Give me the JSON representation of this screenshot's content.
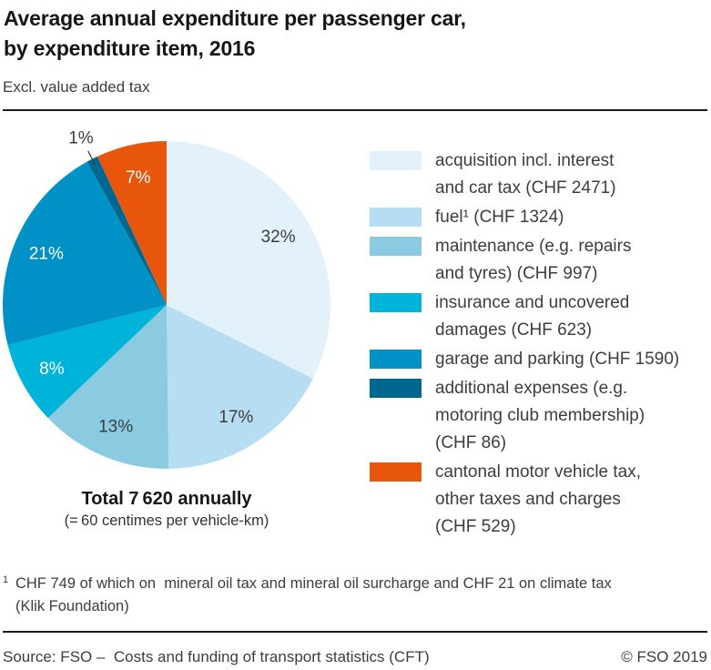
{
  "header": {
    "title_line1": "Average annual expenditure per passenger car,",
    "title_line2": "by expenditure item, 2016",
    "subtitle": "Excl. value added tax"
  },
  "chart_data": {
    "type": "pie",
    "title": "Average annual expenditure per passenger car, by expenditure item, 2016",
    "subtitle": "Excl. value added tax",
    "unit": "CHF",
    "total_chf": 7620,
    "start_angle_deg": 0,
    "direction": "clockwise",
    "legend_position": "right",
    "slices": [
      {
        "name": "acquisition incl. interest and car tax",
        "chf": 2471,
        "pct_label": "32%",
        "color": "#e3f1fb",
        "text_color": "#3d3d3d",
        "label_inside": true
      },
      {
        "name": "fuel",
        "chf": 1324,
        "pct_label": "17%",
        "color": "#b7ddf2",
        "text_color": "#3d3d3d",
        "label_inside": true
      },
      {
        "name": "maintenance (e.g. repairs and tyres)",
        "chf": 997,
        "pct_label": "13%",
        "color": "#8acbe2",
        "text_color": "#3d3d3d",
        "label_inside": true
      },
      {
        "name": "insurance and uncovered damages",
        "chf": 623,
        "pct_label": "8%",
        "color": "#00b3d9",
        "text_color": "#ffffff",
        "label_inside": true
      },
      {
        "name": "garage and parking",
        "chf": 1590,
        "pct_label": "21%",
        "color": "#0092c6",
        "text_color": "#ffffff",
        "label_inside": true
      },
      {
        "name": "additional expenses (e.g. motoring club membership)",
        "chf": 86,
        "pct_label": "1%",
        "color": "#00678e",
        "text_color": "#3d3d3d",
        "label_inside": false
      },
      {
        "name": "cantonal motor vehicle tax, other taxes and charges",
        "chf": 529,
        "pct_label": "7%",
        "color": "#e8560c",
        "text_color": "#ffffff",
        "label_inside": true
      }
    ]
  },
  "legend": {
    "items": [
      {
        "text": "acquisition incl. interest\nand car tax (CHF 2471)",
        "color": "#e3f1fb"
      },
      {
        "text": "fuel¹ (CHF 1324)",
        "color": "#b7ddf2"
      },
      {
        "text": "maintenance (e.g. repairs\nand tyres) (CHF 997)",
        "color": "#8acbe2"
      },
      {
        "text": "insurance and uncovered\ndamages (CHF 623)",
        "color": "#00b3d9"
      },
      {
        "text": "garage and parking (CHF 1590)",
        "color": "#0092c6"
      },
      {
        "text": "additional expenses (e.g.\nmotoring club membership)\n(CHF 86)",
        "color": "#00678e"
      },
      {
        "text": "cantonal motor vehicle tax,\nother taxes and charges\n(CHF 529)",
        "color": "#e8560c"
      }
    ]
  },
  "total": {
    "line1": "Total 7 620 annually",
    "line2": "(= 60 centimes per vehicle-km)"
  },
  "footnote": {
    "marker": "1",
    "text": "CHF 749 of which on  mineral oil tax and mineral oil surcharge and CHF 21 on climate tax\n(Klik Foundation)"
  },
  "footer": {
    "source": "Source: FSO –  Costs and funding of transport statistics (CFT)",
    "copyright": "© FSO 2019"
  },
  "colors": {
    "text_dark": "#161616",
    "text_gray": "#3d3d3d",
    "leader_line": "#3d3d3d"
  }
}
